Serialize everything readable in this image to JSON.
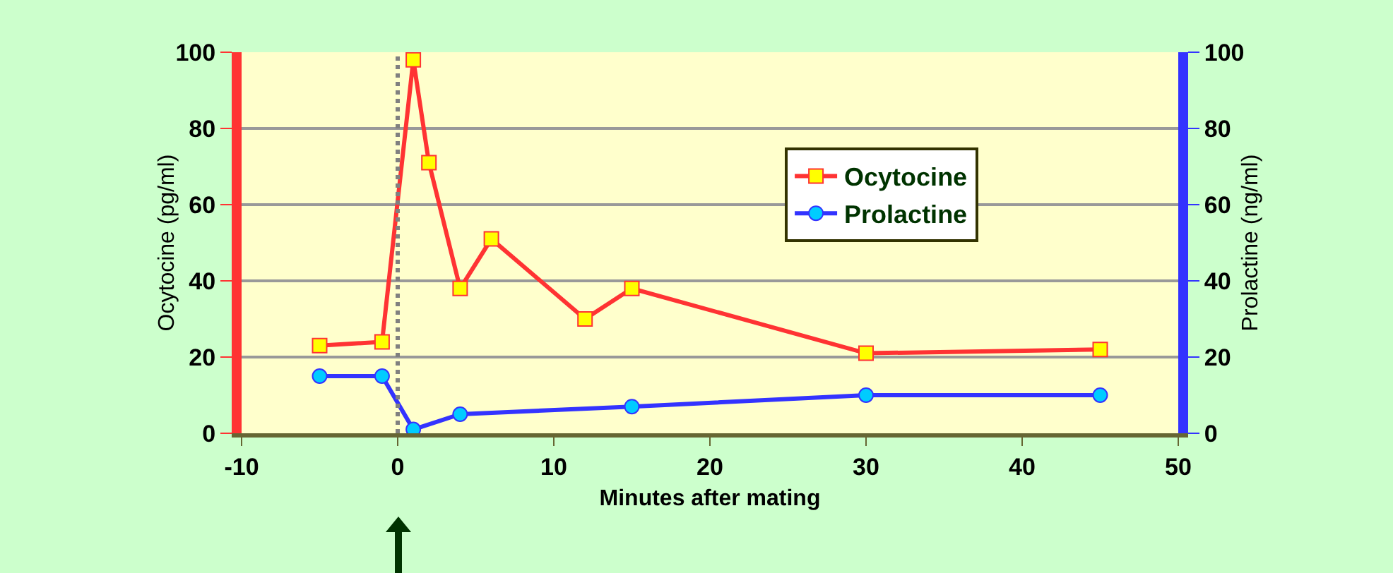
{
  "chart_data": {
    "type": "line",
    "xlabel": "Minutes after mating",
    "ylabel": "Ocytocine (pg/ml)",
    "y2label": "Prolactine (ng/ml)",
    "xlim": [
      -10,
      50
    ],
    "xticks": [
      -10,
      0,
      10,
      20,
      30,
      40,
      50
    ],
    "ylim": [
      0,
      100
    ],
    "yticks": [
      0,
      20,
      40,
      60,
      80,
      100
    ],
    "y2lim": [
      0,
      100
    ],
    "y2ticks": [
      0,
      20,
      40,
      60,
      80,
      100
    ],
    "grid": "y",
    "legend": "right",
    "line_style": "solid",
    "ref_lines": [
      {
        "axis": "x",
        "value": 0,
        "color": "#808080",
        "line_style": "dotted"
      }
    ],
    "series": [
      {
        "name": "Ocytocine",
        "color": "#ff3333",
        "marker": "square",
        "x": [
          -5,
          -1,
          1,
          2,
          4,
          6,
          12,
          15,
          30,
          45
        ],
        "values": [
          23,
          24,
          98,
          71,
          38,
          51,
          30,
          38,
          21,
          22
        ]
      },
      {
        "name": "Prolactine",
        "color": "#3333ff",
        "marker": "circle",
        "axis": "y2",
        "x": [
          -5,
          -1,
          1,
          4,
          15,
          30,
          45
        ],
        "values": [
          15,
          15,
          1,
          5,
          7,
          10,
          10
        ]
      }
    ]
  }
}
